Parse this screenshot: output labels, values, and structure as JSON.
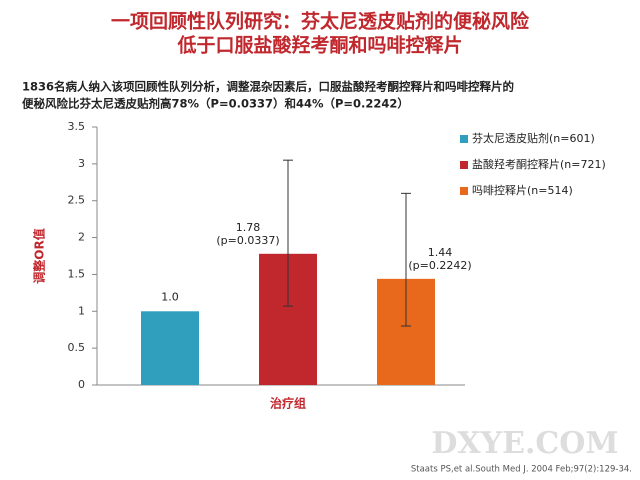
{
  "chart_data": {
    "type": "bar",
    "title": [
      "一项回顾性队列研究：芬太尼透皮贴剂的便秘风险",
      "低于口服盐酸羟考酮和吗啡控释片"
    ],
    "subtitle": [
      "1836名病人纳入该项回顾性队列分析，调整混杂因素后，口服盐酸羟考酮控释片和吗啡控释片的",
      "便秘风险比芬太尼透皮贴剂高78%（P=0.0337）和44%（P=0.2242）"
    ],
    "y_label": "调整OR值",
    "x_label": "治疗组",
    "categories": [
      "芬太尼透皮贴剂(n=601)",
      "盐酸羟考酮控释片(n=721)",
      "吗啡控释片(n=514)"
    ],
    "colors": [
      "#2f9fbd",
      "#c0282e",
      "#e8681c"
    ],
    "values": [
      1,
      1.78,
      1.44
    ],
    "value_labels": [
      "1.0",
      "1.78",
      "1.44"
    ],
    "p_labels": [
      null,
      "(p=0.0337)",
      "(p=0.2242)"
    ],
    "error_low": [
      null,
      1.07,
      0.8
    ],
    "error_high": [
      null,
      3.05,
      2.6
    ],
    "ylim": [
      0,
      3.5
    ],
    "yticks": [
      0,
      0.5,
      1,
      1.5,
      2,
      2.5,
      3,
      3.5
    ],
    "legend": "right",
    "citation": "Staats PS,et al.South Med J. 2004 Feb;97(2):129-34.",
    "watermark": "DXYE.COM"
  }
}
